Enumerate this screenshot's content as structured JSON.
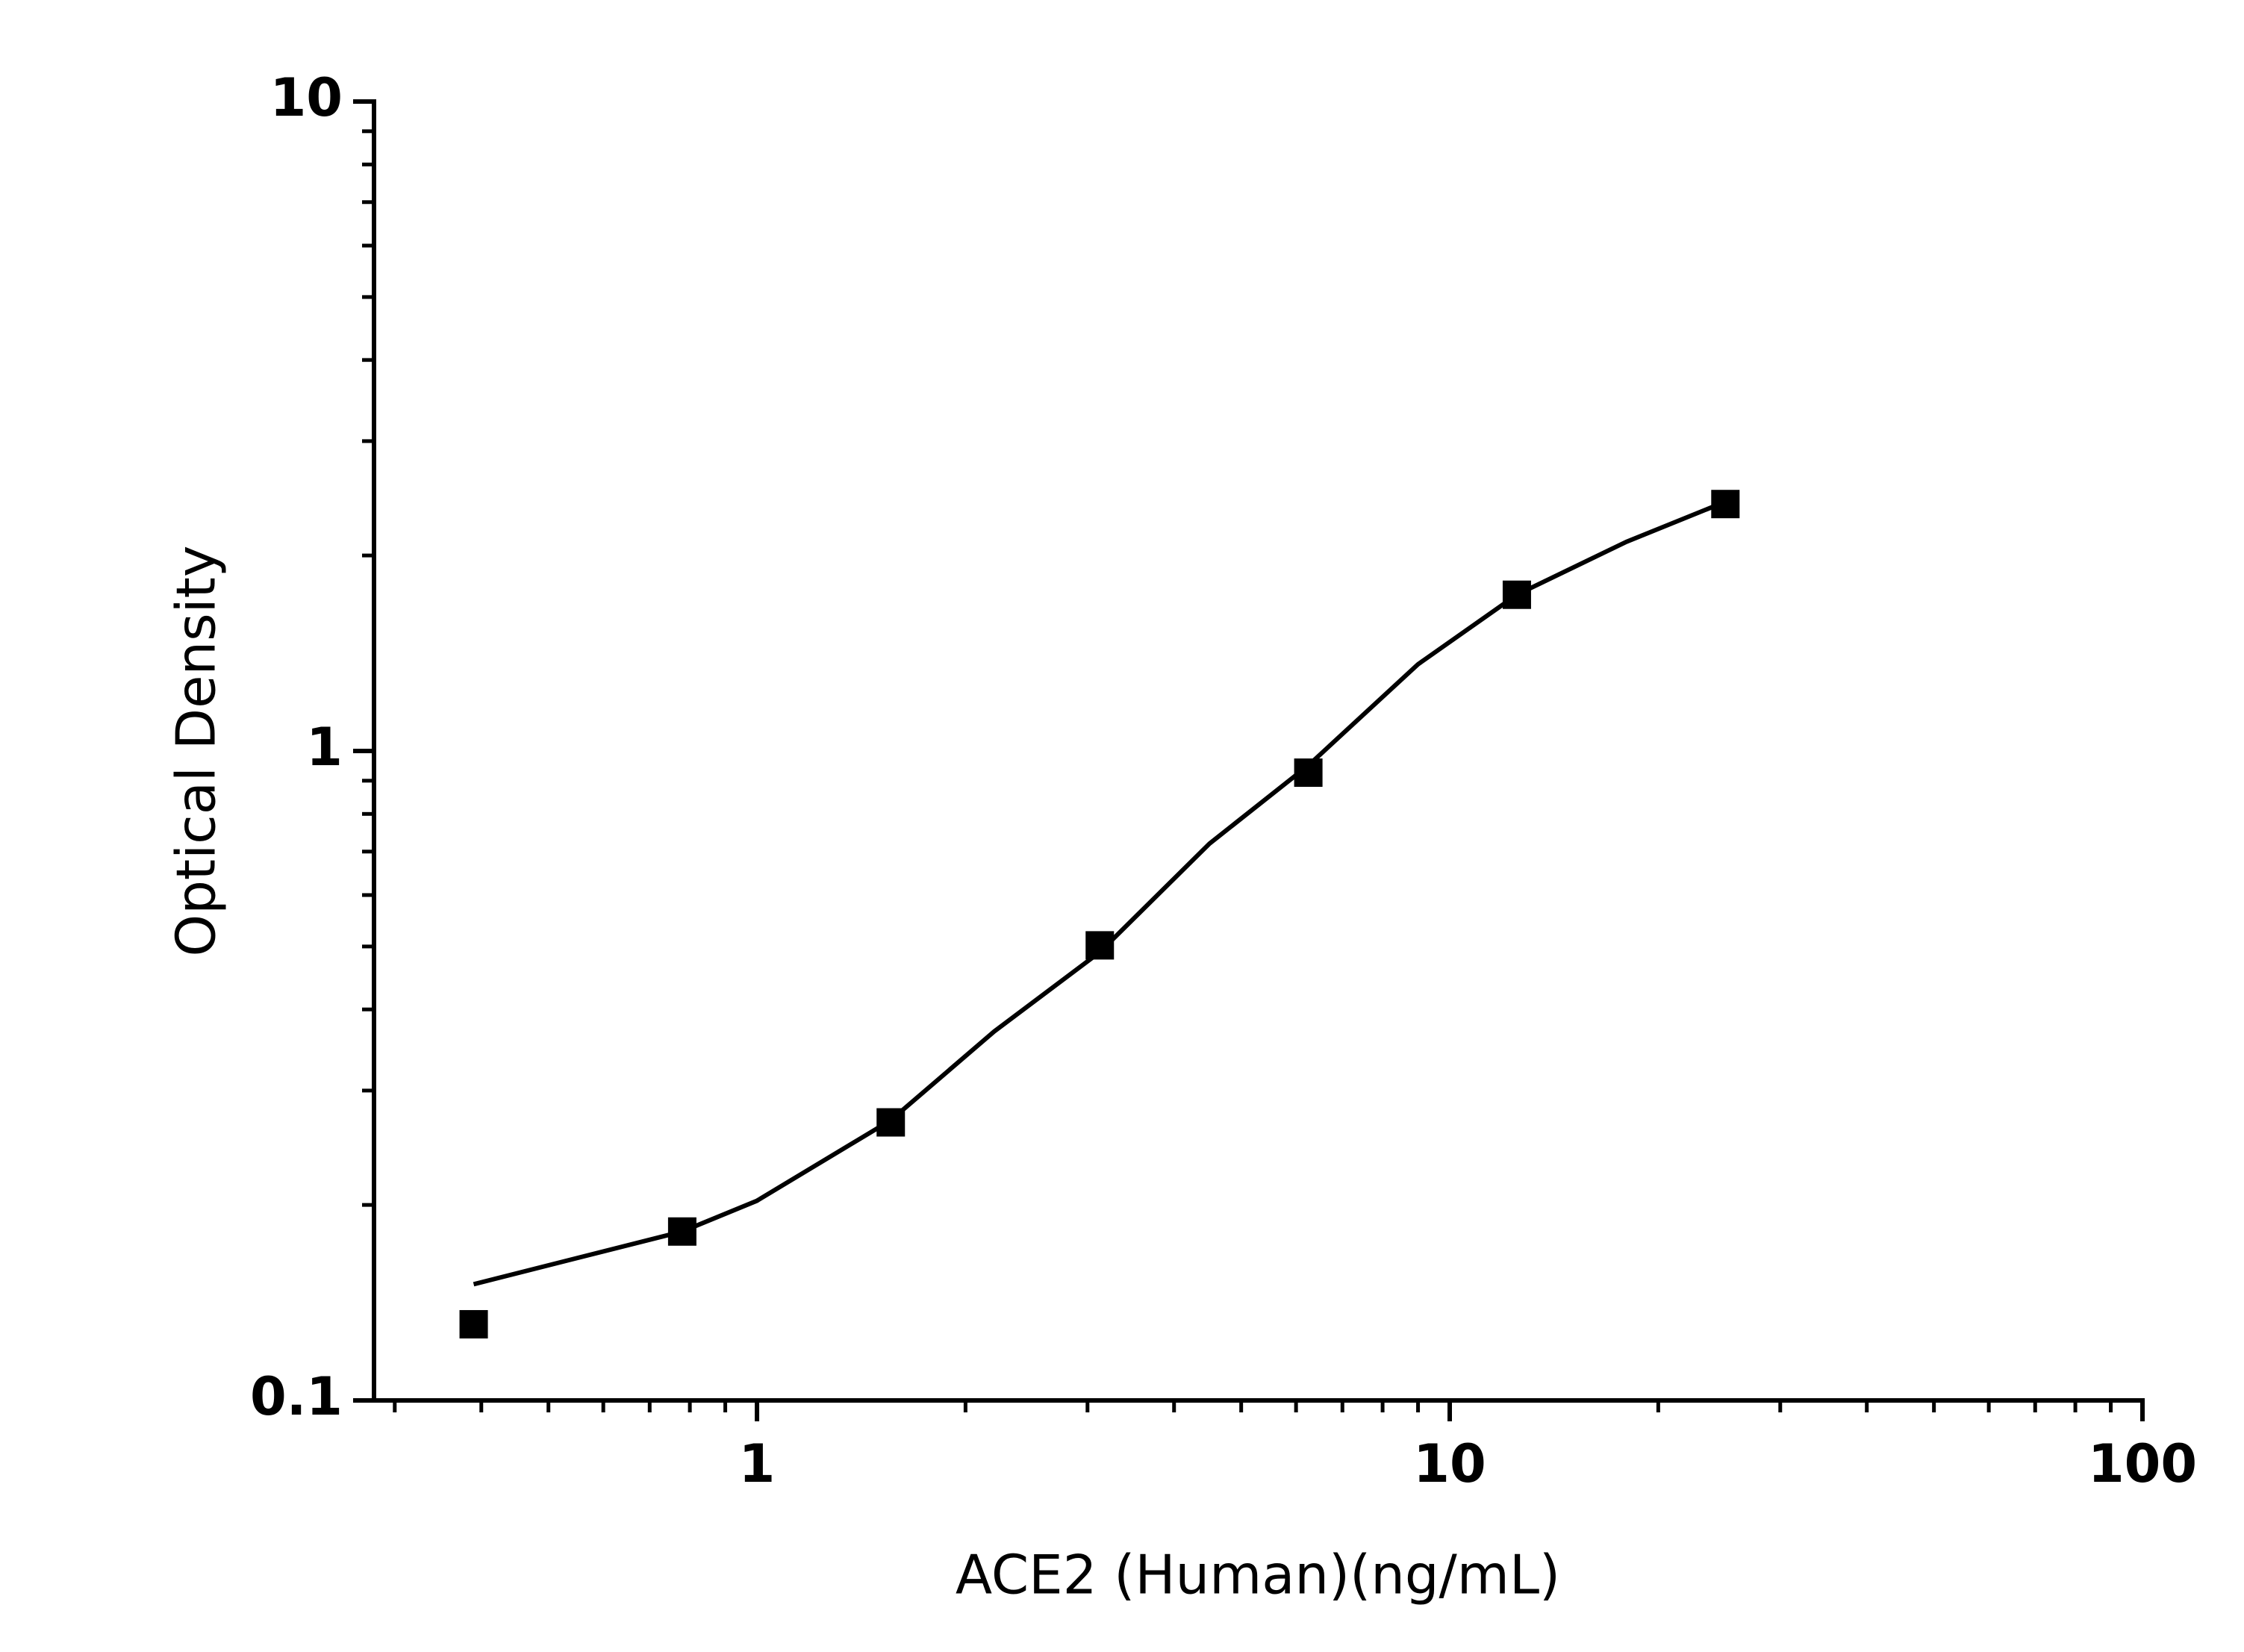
{
  "chart_data": {
    "type": "scatter",
    "x_label": "ACE2 (Human)(ng/mL)",
    "y_label": "Optical Density",
    "x": [
      0.39,
      0.78,
      1.56,
      3.125,
      6.25,
      12.5,
      25
    ],
    "values": [
      0.131,
      0.182,
      0.268,
      0.502,
      0.926,
      1.74,
      2.4
    ],
    "color": "#000000",
    "fit": {
      "x": [
        0.39,
        0.78,
        1,
        1.56,
        2.2,
        3.125,
        4.5,
        6.25,
        9,
        12.5,
        18,
        25
      ],
      "values": [
        0.151,
        0.182,
        0.203,
        0.27,
        0.37,
        0.49,
        0.72,
        0.95,
        1.36,
        1.74,
        2.1,
        2.42
      ]
    },
    "xlog": true,
    "ylog": true,
    "xlim": [
      0.28,
      100
    ],
    "ylim": [
      0.1,
      10
    ],
    "xticks": [
      1,
      10,
      100
    ],
    "yticks": [
      0.1,
      1,
      10
    ],
    "xminorticks": [
      0.3,
      0.4,
      0.5,
      0.6,
      0.7,
      0.8,
      0.9,
      2,
      3,
      4,
      5,
      6,
      7,
      8,
      9,
      20,
      30,
      40,
      50,
      60,
      70,
      80,
      90
    ],
    "yminorticks": [
      0.2,
      0.3,
      0.4,
      0.5,
      0.6,
      0.7,
      0.8,
      0.9,
      2,
      3,
      4,
      5,
      6,
      7,
      8,
      9
    ],
    "grid": false
  }
}
